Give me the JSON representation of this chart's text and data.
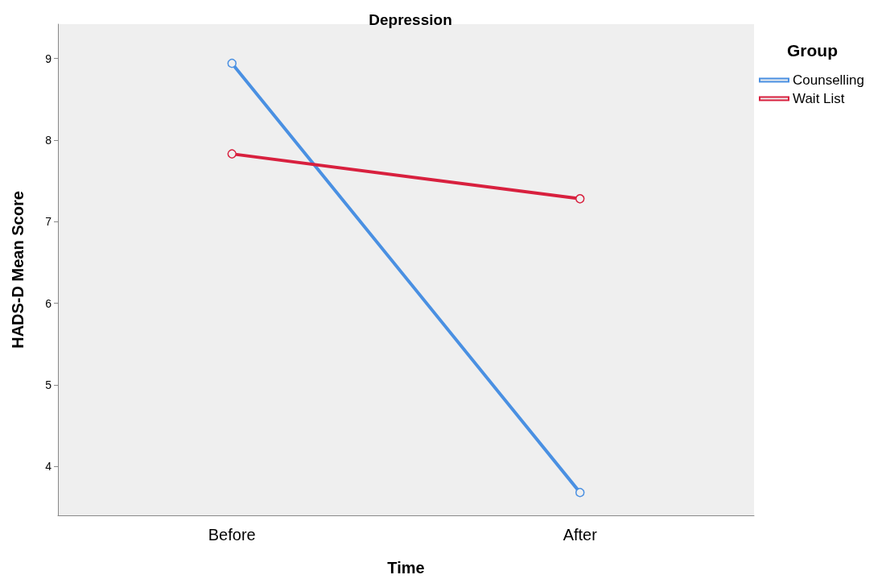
{
  "chart_data": {
    "type": "line",
    "title": "Depression",
    "xlabel": "Time",
    "ylabel": "HADS-D Mean Score",
    "legend_title": "Group",
    "categories": [
      "Before",
      "After"
    ],
    "series": [
      {
        "name": "Counselling",
        "color": "#4a90e2",
        "values": [
          8.94,
          3.68
        ]
      },
      {
        "name": "Wait List",
        "color": "#d8203e",
        "values": [
          7.83,
          7.28
        ]
      }
    ],
    "ylim": [
      3.4,
      9.42
    ],
    "yticks": [
      4,
      5,
      6,
      7,
      8,
      9
    ],
    "grid": false,
    "legend": "top right",
    "marker": "circle",
    "line_style": "solid"
  }
}
